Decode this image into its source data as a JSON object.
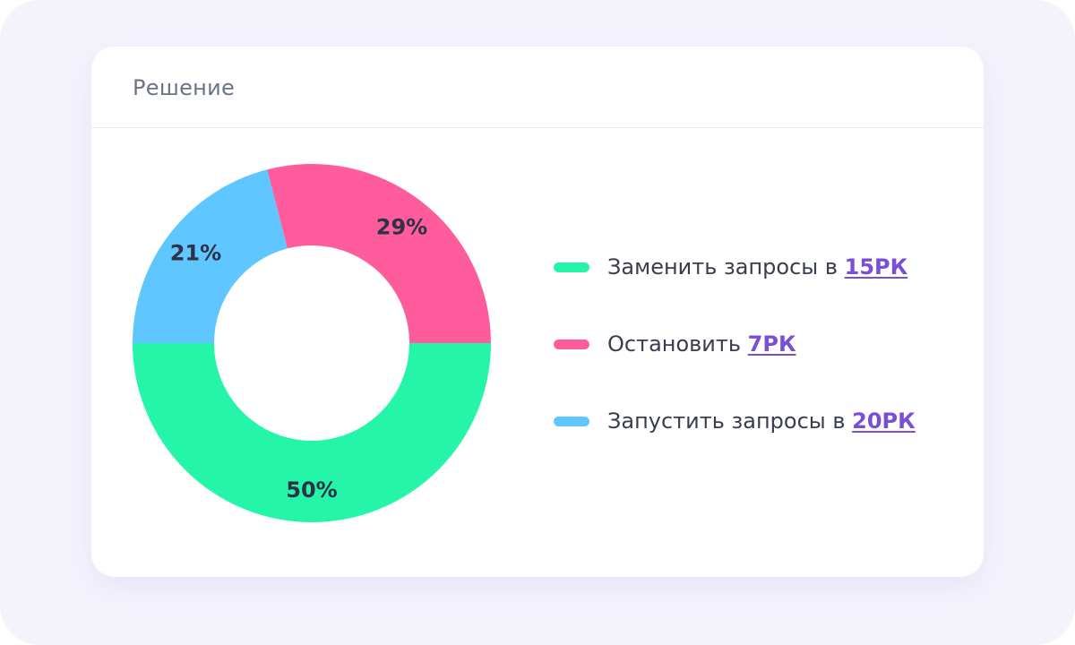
{
  "card": {
    "title": "Решение"
  },
  "legend": [
    {
      "text": "Заменить запросы в ",
      "link": "15РК",
      "color": "#25f5a8"
    },
    {
      "text": "Остановить ",
      "link": "7РК",
      "color": "#ff5c9d"
    },
    {
      "text": "Запустить запросы в ",
      "link": "20РК",
      "color": "#5fc6ff"
    }
  ],
  "colors": {
    "background": "#f4f3fc",
    "card": "#ffffff",
    "link": "#7a4fd6"
  },
  "chart_data": {
    "type": "pie",
    "variant": "donut",
    "title": "",
    "slices": [
      {
        "label": "50%",
        "value": 50,
        "color": "#25f5a8"
      },
      {
        "label": "21%",
        "value": 21,
        "color": "#5fc6ff"
      },
      {
        "label": "29%",
        "value": 29,
        "color": "#ff5c9d"
      }
    ]
  }
}
